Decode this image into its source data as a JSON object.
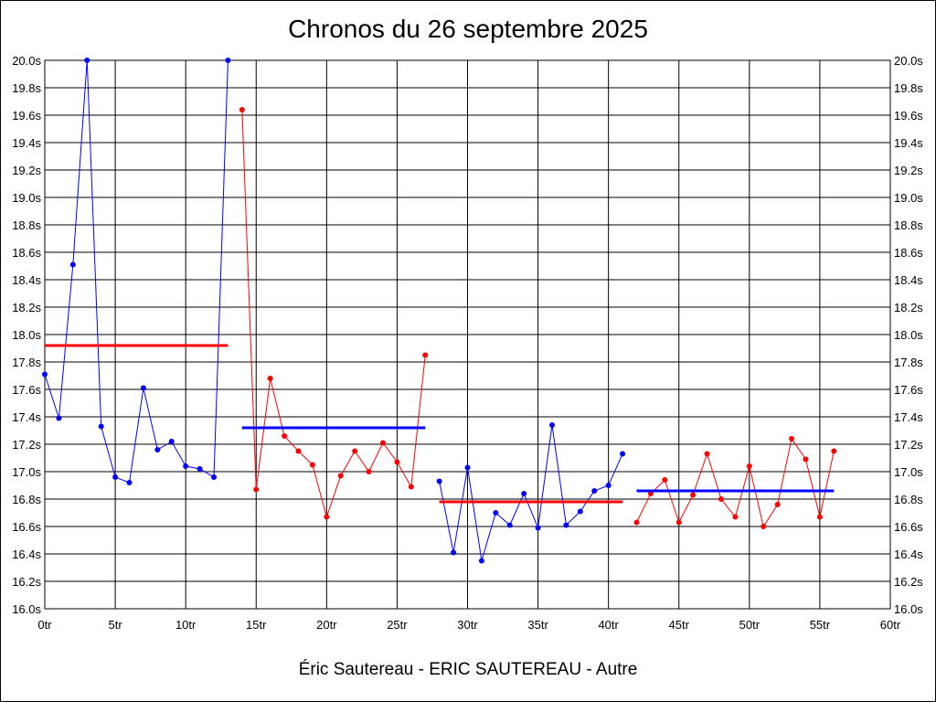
{
  "title": "Chronos du 26 septembre 2025",
  "subtitle": "Éric Sautereau - ERIC SAUTEREAU - Autre",
  "colors": {
    "blue": "#0000ff",
    "red": "#ff0000",
    "grid": "#000000"
  },
  "chart_data": {
    "type": "line",
    "xlim": [
      0,
      60
    ],
    "ylim": [
      16.0,
      20.0
    ],
    "x_ticks": [
      "0tr",
      "5tr",
      "10tr",
      "15tr",
      "20tr",
      "25tr",
      "30tr",
      "35tr",
      "40tr",
      "45tr",
      "50tr",
      "55tr",
      "60tr"
    ],
    "y_ticks": [
      "16.0s",
      "16.2s",
      "16.4s",
      "16.6s",
      "16.8s",
      "17.0s",
      "17.2s",
      "17.4s",
      "17.6s",
      "17.8s",
      "18.0s",
      "18.2s",
      "18.4s",
      "18.6s",
      "18.8s",
      "19.0s",
      "19.2s",
      "19.4s",
      "19.6s",
      "19.8s",
      "20.0s"
    ],
    "grid": true,
    "series": [
      {
        "color": "#0000ff",
        "points": [
          [
            0,
            17.71
          ],
          [
            1,
            17.39
          ],
          [
            2,
            18.51
          ],
          [
            3,
            20.0
          ],
          [
            4,
            17.33
          ],
          [
            5,
            16.96
          ],
          [
            6,
            16.92
          ],
          [
            7,
            17.61
          ],
          [
            8,
            17.16
          ],
          [
            9,
            17.22
          ],
          [
            10,
            17.04
          ],
          [
            11,
            17.02
          ],
          [
            12,
            16.96
          ],
          [
            13,
            20.0
          ]
        ],
        "average": {
          "value": 17.92,
          "x_range": [
            0,
            13
          ],
          "color": "#ff0000"
        }
      },
      {
        "color": "#ff0000",
        "points": [
          [
            14,
            19.64
          ],
          [
            15,
            16.87
          ],
          [
            16,
            17.68
          ],
          [
            17,
            17.26
          ],
          [
            18,
            17.15
          ],
          [
            19,
            17.05
          ],
          [
            20,
            16.67
          ],
          [
            21,
            16.97
          ],
          [
            22,
            17.15
          ],
          [
            23,
            17.0
          ],
          [
            24,
            17.21
          ],
          [
            25,
            17.07
          ],
          [
            26,
            16.89
          ],
          [
            27,
            17.85
          ]
        ],
        "average": {
          "value": 17.32,
          "x_range": [
            14,
            27
          ],
          "color": "#0000ff"
        }
      },
      {
        "color": "#0000ff",
        "points": [
          [
            28,
            16.93
          ],
          [
            29,
            16.41
          ],
          [
            30,
            17.03
          ],
          [
            31,
            16.35
          ],
          [
            32,
            16.7
          ],
          [
            33,
            16.61
          ],
          [
            34,
            16.84
          ],
          [
            35,
            16.59
          ],
          [
            36,
            17.34
          ],
          [
            37,
            16.61
          ],
          [
            38,
            16.71
          ],
          [
            39,
            16.86
          ],
          [
            40,
            16.9
          ],
          [
            41,
            17.13
          ]
        ],
        "average": {
          "value": 16.78,
          "x_range": [
            28,
            41
          ],
          "color": "#ff0000"
        }
      },
      {
        "color": "#ff0000",
        "points": [
          [
            42,
            16.63
          ],
          [
            43,
            16.84
          ],
          [
            44,
            16.94
          ],
          [
            45,
            16.63
          ],
          [
            46,
            16.83
          ],
          [
            47,
            17.13
          ],
          [
            48,
            16.8
          ],
          [
            49,
            16.67
          ],
          [
            50,
            17.04
          ],
          [
            51,
            16.6
          ],
          [
            52,
            16.76
          ],
          [
            53,
            17.24
          ],
          [
            54,
            17.09
          ],
          [
            55,
            16.67
          ],
          [
            56,
            17.15
          ]
        ],
        "average": {
          "value": 16.86,
          "x_range": [
            42,
            56
          ],
          "color": "#0000ff"
        }
      }
    ]
  }
}
